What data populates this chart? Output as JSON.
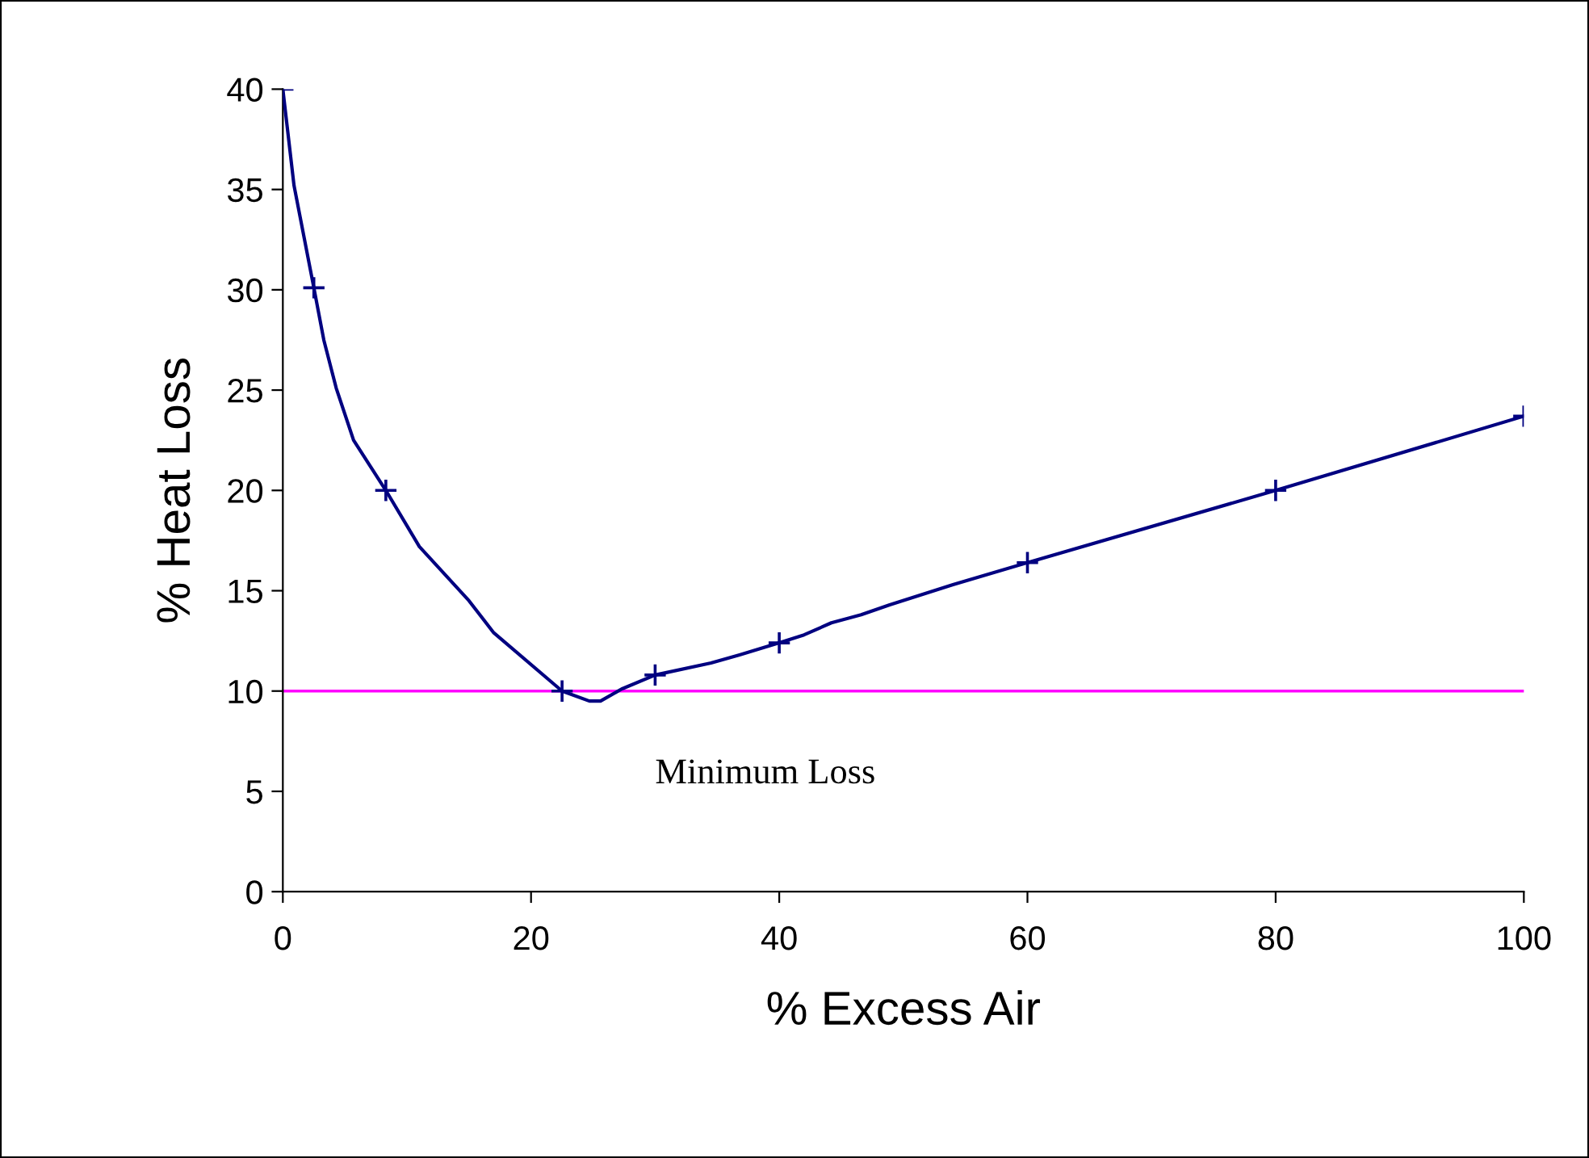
{
  "chart_data": {
    "type": "line",
    "xlabel": "% Excess Air",
    "ylabel": "% Heat Loss",
    "xlim": [
      0,
      100
    ],
    "xticks": [
      0,
      20,
      40,
      60,
      80,
      100
    ],
    "ylim": [
      0,
      40
    ],
    "yticks": [
      0,
      5,
      10,
      15,
      20,
      25,
      30,
      35,
      40
    ],
    "grid": false,
    "legend": false,
    "line_style": "solid",
    "series": [
      {
        "color": "#000080",
        "marker": "none",
        "x": [
          0,
          0.9,
          2.5,
          3.3,
          4.3,
          5.7,
          8.3,
          11,
          15,
          17,
          22.5,
          24.7,
          25.6,
          27.3,
          30,
          34.5,
          36.8,
          40,
          42,
          44.2,
          46.6,
          48.9,
          54,
          60,
          80,
          100
        ],
        "values": [
          40,
          35.2,
          30.1,
          27.5,
          25.1,
          22.5,
          20,
          17.2,
          14.5,
          12.9,
          10,
          9.5,
          9.5,
          10.1,
          10.8,
          11.4,
          11.8,
          12.4,
          12.8,
          13.4,
          13.8,
          14.3,
          15.3,
          16.4,
          20,
          23.7
        ]
      },
      {
        "type": "scatter",
        "color": "#000080",
        "marker": "cross",
        "x": [
          0,
          2.5,
          8.3,
          22.5,
          30,
          40,
          60,
          80,
          100
        ],
        "values": [
          40,
          30.1,
          20,
          10,
          10.8,
          12.4,
          16.4,
          20,
          23.7
        ]
      }
    ],
    "ref_lines": [
      {
        "axis": "y",
        "value": 10,
        "label": "Minimum Loss",
        "color": "#ff00ff"
      }
    ]
  }
}
